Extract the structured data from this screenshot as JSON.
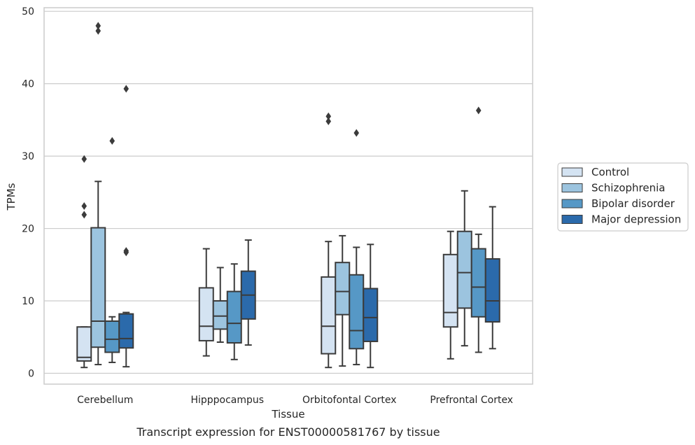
{
  "chart_data": {
    "type": "box",
    "caption": "Transcript expression for ENST00000581767 by tissue",
    "xlabel": "Tissue",
    "ylabel": "TPMs",
    "ylim": [
      -1.5,
      50.5
    ],
    "yticks": [
      0,
      10,
      20,
      30,
      40,
      50
    ],
    "grid": "horizontal",
    "legend_position": "right",
    "categories": [
      "Cerebellum",
      "Hipppocampus",
      "Orbitofontal Cortex",
      "Prefrontal Cortex"
    ],
    "series": [
      {
        "name": "Control",
        "color": "#d4e3f2",
        "boxes": [
          {
            "min": 0.8,
            "q1": 1.7,
            "median": 2.2,
            "q3": 6.4,
            "max": 6.4,
            "outliers": [
              29.6,
              23.1,
              21.9
            ]
          },
          {
            "min": 2.4,
            "q1": 4.5,
            "median": 6.5,
            "q3": 11.8,
            "max": 17.2,
            "outliers": []
          },
          {
            "min": 0.8,
            "q1": 2.7,
            "median": 6.5,
            "q3": 13.3,
            "max": 18.2,
            "outliers": [
              35.5,
              34.8
            ]
          },
          {
            "min": 2.0,
            "q1": 6.4,
            "median": 8.4,
            "q3": 16.4,
            "max": 19.6,
            "outliers": []
          }
        ]
      },
      {
        "name": "Schizophrenia",
        "color": "#9cc4df",
        "boxes": [
          {
            "min": 1.2,
            "q1": 3.6,
            "median": 7.2,
            "q3": 20.1,
            "max": 26.5,
            "outliers": [
              48.0,
              47.3
            ]
          },
          {
            "min": 4.3,
            "q1": 6.1,
            "median": 7.9,
            "q3": 10.0,
            "max": 14.6,
            "outliers": []
          },
          {
            "min": 1.0,
            "q1": 8.1,
            "median": 11.3,
            "q3": 15.3,
            "max": 19.0,
            "outliers": []
          },
          {
            "min": 3.8,
            "q1": 9.0,
            "median": 13.9,
            "q3": 19.6,
            "max": 25.2,
            "outliers": []
          }
        ]
      },
      {
        "name": "Bipolar disorder",
        "color": "#5698c6",
        "boxes": [
          {
            "min": 1.5,
            "q1": 2.9,
            "median": 4.7,
            "q3": 7.2,
            "max": 7.8,
            "outliers": [
              32.1
            ]
          },
          {
            "min": 1.9,
            "q1": 4.2,
            "median": 6.9,
            "q3": 11.3,
            "max": 15.1,
            "outliers": []
          },
          {
            "min": 1.2,
            "q1": 3.4,
            "median": 5.9,
            "q3": 13.6,
            "max": 17.4,
            "outliers": [
              33.2
            ]
          },
          {
            "min": 2.9,
            "q1": 7.8,
            "median": 11.9,
            "q3": 17.2,
            "max": 19.2,
            "outliers": [
              36.3
            ]
          }
        ]
      },
      {
        "name": "Major depression",
        "color": "#2b6aab",
        "boxes": [
          {
            "min": 0.9,
            "q1": 3.5,
            "median": 4.8,
            "q3": 8.2,
            "max": 8.4,
            "outliers": [
              39.3,
              16.9,
              16.7
            ]
          },
          {
            "min": 3.9,
            "q1": 7.5,
            "median": 10.8,
            "q3": 14.1,
            "max": 18.4,
            "outliers": []
          },
          {
            "min": 0.8,
            "q1": 4.4,
            "median": 7.7,
            "q3": 11.7,
            "max": 17.8,
            "outliers": []
          },
          {
            "min": 3.4,
            "q1": 7.1,
            "median": 10.0,
            "q3": 15.8,
            "max": 23.0,
            "outliers": []
          }
        ]
      }
    ]
  }
}
